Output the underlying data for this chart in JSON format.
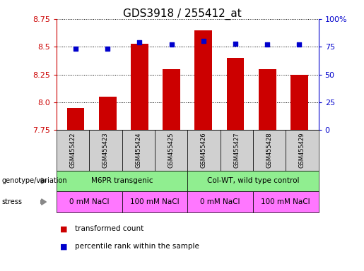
{
  "title": "GDS3918 / 255412_at",
  "samples": [
    "GSM455422",
    "GSM455423",
    "GSM455424",
    "GSM455425",
    "GSM455426",
    "GSM455427",
    "GSM455428",
    "GSM455429"
  ],
  "bar_values": [
    7.95,
    8.05,
    8.53,
    8.3,
    8.65,
    8.4,
    8.3,
    8.25
  ],
  "dot_values": [
    73,
    73,
    79,
    77,
    80,
    78,
    77,
    77
  ],
  "bar_bottom": 7.75,
  "ylim_left": [
    7.75,
    8.75
  ],
  "ylim_right": [
    0,
    100
  ],
  "yticks_left": [
    7.75,
    8.0,
    8.25,
    8.5,
    8.75
  ],
  "yticks_right": [
    0,
    25,
    50,
    75,
    100
  ],
  "ytick_labels_right": [
    "0",
    "25",
    "50",
    "75",
    "100%"
  ],
  "bar_color": "#cc0000",
  "dot_color": "#0000cc",
  "genotype_groups": [
    {
      "label": "M6PR transgenic",
      "start": 0,
      "end": 4
    },
    {
      "label": "Col-WT, wild type control",
      "start": 4,
      "end": 8
    }
  ],
  "stress_groups": [
    {
      "label": "0 mM NaCl",
      "start": 0,
      "end": 2
    },
    {
      "label": "100 mM NaCl",
      "start": 2,
      "end": 4
    },
    {
      "label": "0 mM NaCl",
      "start": 4,
      "end": 6
    },
    {
      "label": "100 mM NaCl",
      "start": 6,
      "end": 8
    }
  ],
  "legend_items": [
    {
      "label": "transformed count",
      "color": "#cc0000"
    },
    {
      "label": "percentile rank within the sample",
      "color": "#0000cc"
    }
  ],
  "genotype_label": "genotype/variation",
  "stress_label": "stress",
  "left_axis_color": "#cc0000",
  "right_axis_color": "#0000cc",
  "genotype_color": "#90ee90",
  "stress_color": "#ff77ff",
  "sample_box_color": "#d0d0d0"
}
